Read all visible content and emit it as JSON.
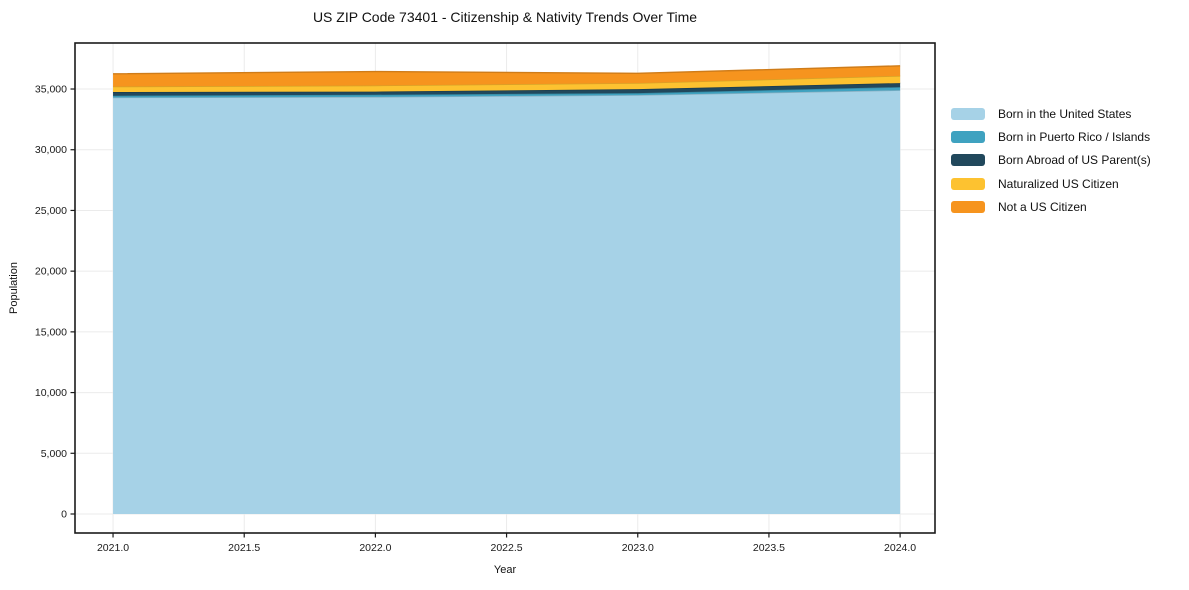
{
  "title": "US ZIP Code 73401 - Citizenship & Nativity Trends Over Time",
  "chart_data": {
    "type": "area",
    "stacked": true,
    "title": "US ZIP Code 73401 - Citizenship & Nativity Trends Over Time",
    "xlabel": "Year",
    "ylabel": "Population",
    "x": [
      2021,
      2022,
      2023,
      2024
    ],
    "series": [
      {
        "name": "Born in the United States",
        "color": "#A6D2E7",
        "values": [
          34300,
          34350,
          34500,
          34900
        ]
      },
      {
        "name": "Born in Puerto Rico / Islands",
        "color": "#3FA2C0",
        "values": [
          150,
          180,
          160,
          260
        ]
      },
      {
        "name": "Born Abroad of US Parent(s)",
        "color": "#21485C",
        "values": [
          300,
          260,
          330,
          330
        ]
      },
      {
        "name": "Naturalized US Citizen",
        "color": "#FDC230",
        "values": [
          450,
          500,
          500,
          590
        ]
      },
      {
        "name": "Not a US Citizen",
        "color": "#F6941E",
        "values": [
          1050,
          1150,
          800,
          830
        ]
      }
    ],
    "x_ticks": [
      "2021.0",
      "2021.5",
      "2022.0",
      "2022.5",
      "2023.0",
      "2023.5",
      "2024.0"
    ],
    "y_ticks": [
      "0",
      "5,000",
      "10,000",
      "15,000",
      "20,000",
      "25,000",
      "30,000",
      "35,000"
    ],
    "xlim": [
      2020.855,
      2024.133
    ],
    "ylim": [
      -1565,
      38790
    ],
    "grid": true,
    "legend_position": "right",
    "grid_color": "#ebebeb",
    "spine_color": "#1a1a1a"
  }
}
